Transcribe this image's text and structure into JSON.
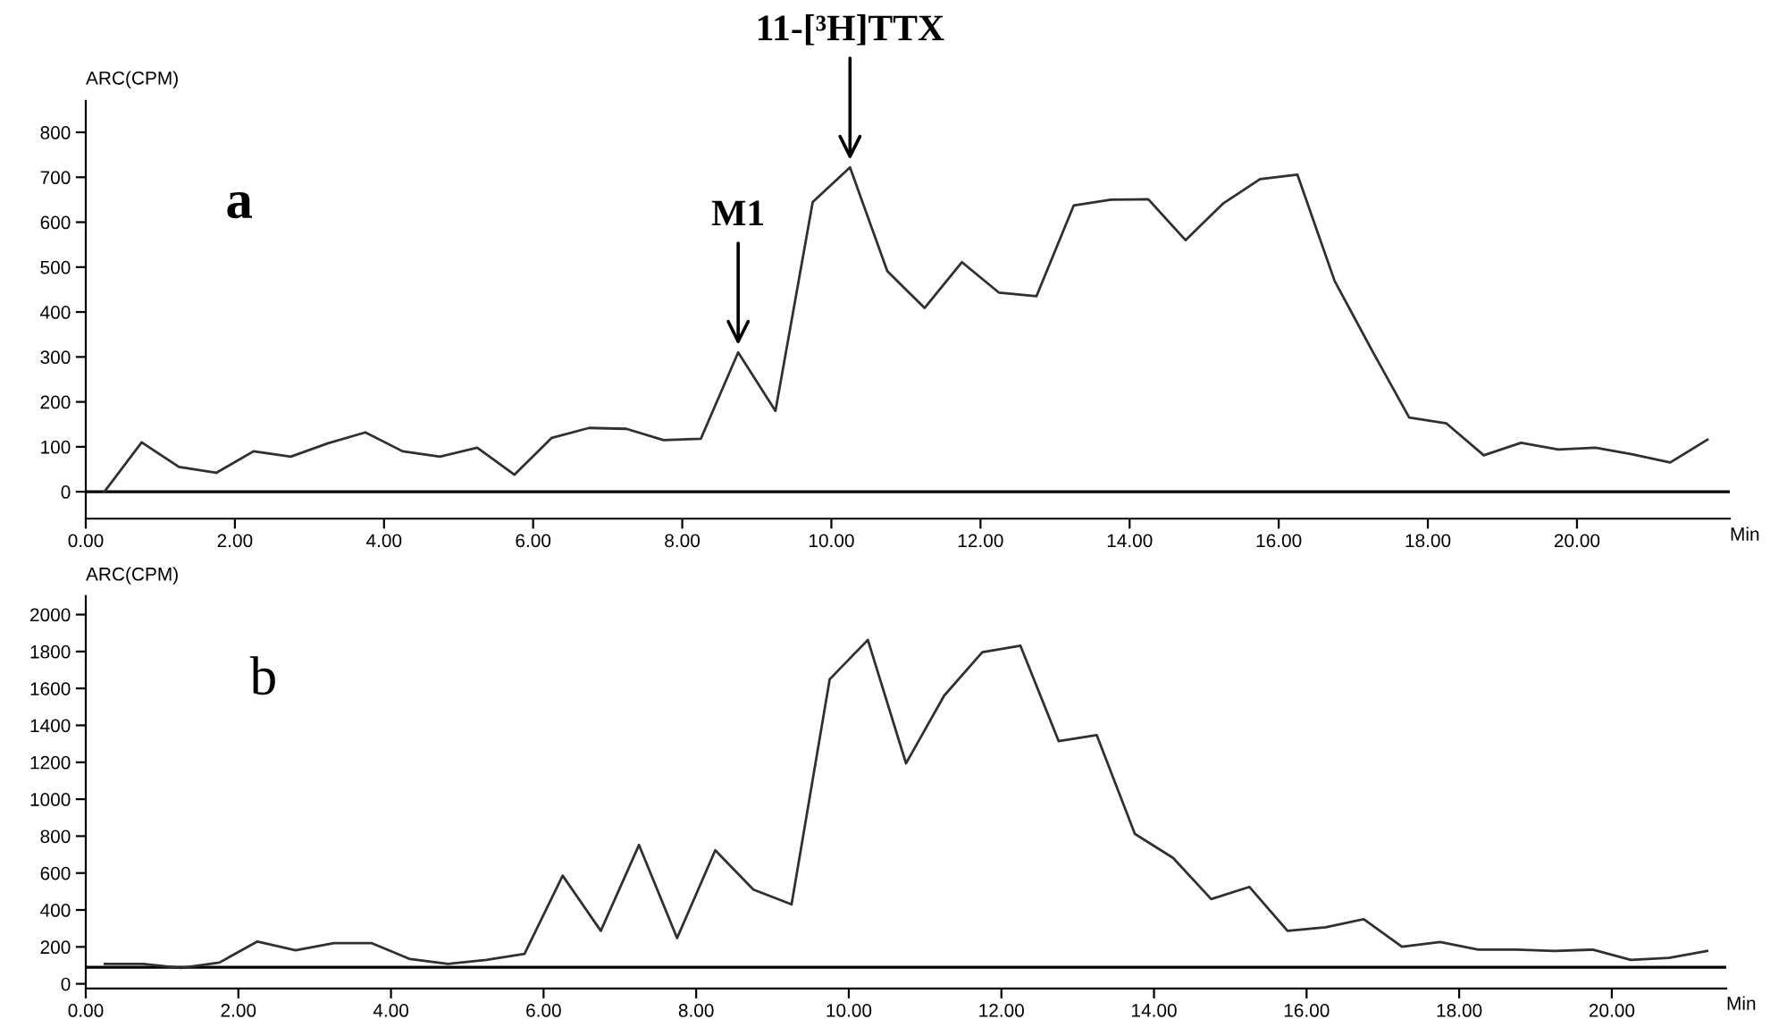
{
  "chart_data": [
    {
      "type": "line",
      "ylabel": "ARC(CPM)",
      "xlabel": "Min",
      "color": "#303030",
      "x": [
        0.25,
        0.75,
        1.25,
        1.75,
        2.25,
        2.75,
        3.25,
        3.75,
        4.25,
        4.75,
        5.25,
        5.75,
        6.25,
        6.75,
        7.25,
        7.75,
        8.25,
        8.75,
        9.25,
        9.75,
        10.25,
        10.75,
        11.25,
        11.75,
        12.25,
        12.75,
        13.25,
        13.75,
        14.25,
        14.75,
        15.25,
        15.75,
        16.25,
        16.75,
        17.25,
        17.75,
        18.25,
        18.75,
        19.25,
        19.75,
        20.25,
        20.75,
        21.25,
        21.75
      ],
      "values": [
        0,
        110,
        55,
        42,
        90,
        78,
        108,
        132,
        90,
        78,
        98,
        38,
        120,
        142,
        140,
        115,
        118,
        310,
        180,
        645,
        722,
        491,
        409,
        511,
        443,
        435,
        637,
        650,
        651,
        560,
        641,
        696,
        706,
        469,
        315,
        165,
        152,
        81,
        109,
        94,
        98,
        83,
        65,
        116
      ],
      "xlim": [
        0,
        22.05
      ],
      "ylim": [
        -60,
        870
      ],
      "xticks": [
        {
          "value": 0,
          "label": "0.00"
        },
        {
          "value": 2,
          "label": "2.00"
        },
        {
          "value": 4,
          "label": "4.00"
        },
        {
          "value": 6,
          "label": "6.00"
        },
        {
          "value": 8,
          "label": "8.00"
        },
        {
          "value": 10,
          "label": "10.00"
        },
        {
          "value": 12,
          "label": "12.00"
        },
        {
          "value": 14,
          "label": "14.00"
        },
        {
          "value": 16,
          "label": "16.00"
        },
        {
          "value": 18,
          "label": "18.00"
        },
        {
          "value": 20,
          "label": "20.00"
        }
      ],
      "yticks": [
        0,
        100,
        200,
        300,
        400,
        500,
        600,
        700,
        800
      ],
      "ref_lines": [
        {
          "axis": "y",
          "value": 0,
          "color": "#000000"
        }
      ],
      "annotations": [
        "a",
        {
          "text": "M1",
          "x": 8.75,
          "y": 310
        },
        {
          "text": "11-[³H]TTX",
          "x": 10.25,
          "y": 722
        }
      ],
      "grid": false,
      "legend": false,
      "marker": "none",
      "line_style": "solid"
    },
    {
      "type": "line",
      "ylabel": "ARC(CPM)",
      "xlabel": "Min",
      "color": "#303030",
      "x": [
        0.25,
        0.75,
        1.25,
        1.75,
        2.25,
        2.75,
        3.25,
        3.75,
        4.25,
        4.75,
        5.25,
        5.75,
        6.25,
        6.75,
        7.25,
        7.75,
        8.25,
        8.75,
        9.25,
        9.75,
        10.25,
        10.75,
        11.25,
        11.75,
        12.25,
        12.75,
        13.25,
        13.75,
        14.25,
        14.75,
        15.25,
        15.75,
        16.25,
        16.75,
        17.25,
        17.75,
        18.25,
        18.75,
        19.25,
        19.75,
        20.25,
        20.75,
        21.25
      ],
      "values": [
        108,
        108,
        86,
        115,
        229,
        182,
        220,
        220,
        134,
        108,
        130,
        162,
        586,
        287,
        752,
        248,
        723,
        510,
        430,
        1650,
        1863,
        1194,
        1561,
        1796,
        1831,
        1315,
        1347,
        812,
        682,
        459,
        525,
        287,
        306,
        350,
        201,
        226,
        185,
        185,
        178,
        185,
        130,
        140,
        178
      ],
      "xlim": [
        0,
        21.5
      ],
      "ylim": [
        -25,
        2100
      ],
      "xticks": [
        {
          "value": 0,
          "label": "0.00"
        },
        {
          "value": 2,
          "label": "2.00"
        },
        {
          "value": 4,
          "label": "4.00"
        },
        {
          "value": 6,
          "label": "6.00"
        },
        {
          "value": 8,
          "label": "8.00"
        },
        {
          "value": 10,
          "label": "10.00"
        },
        {
          "value": 12,
          "label": "12.00"
        },
        {
          "value": 14,
          "label": "14.00"
        },
        {
          "value": 16,
          "label": "16.00"
        },
        {
          "value": 18,
          "label": "18.00"
        },
        {
          "value": 20,
          "label": "20.00"
        }
      ],
      "yticks": [
        0,
        200,
        400,
        600,
        800,
        1000,
        1200,
        1400,
        1600,
        1800,
        2000
      ],
      "ref_lines": [
        {
          "axis": "y",
          "value": 90,
          "color": "#000000"
        }
      ],
      "annotations": [
        "b"
      ],
      "grid": false,
      "legend": false,
      "marker": "none",
      "line_style": "solid"
    }
  ]
}
